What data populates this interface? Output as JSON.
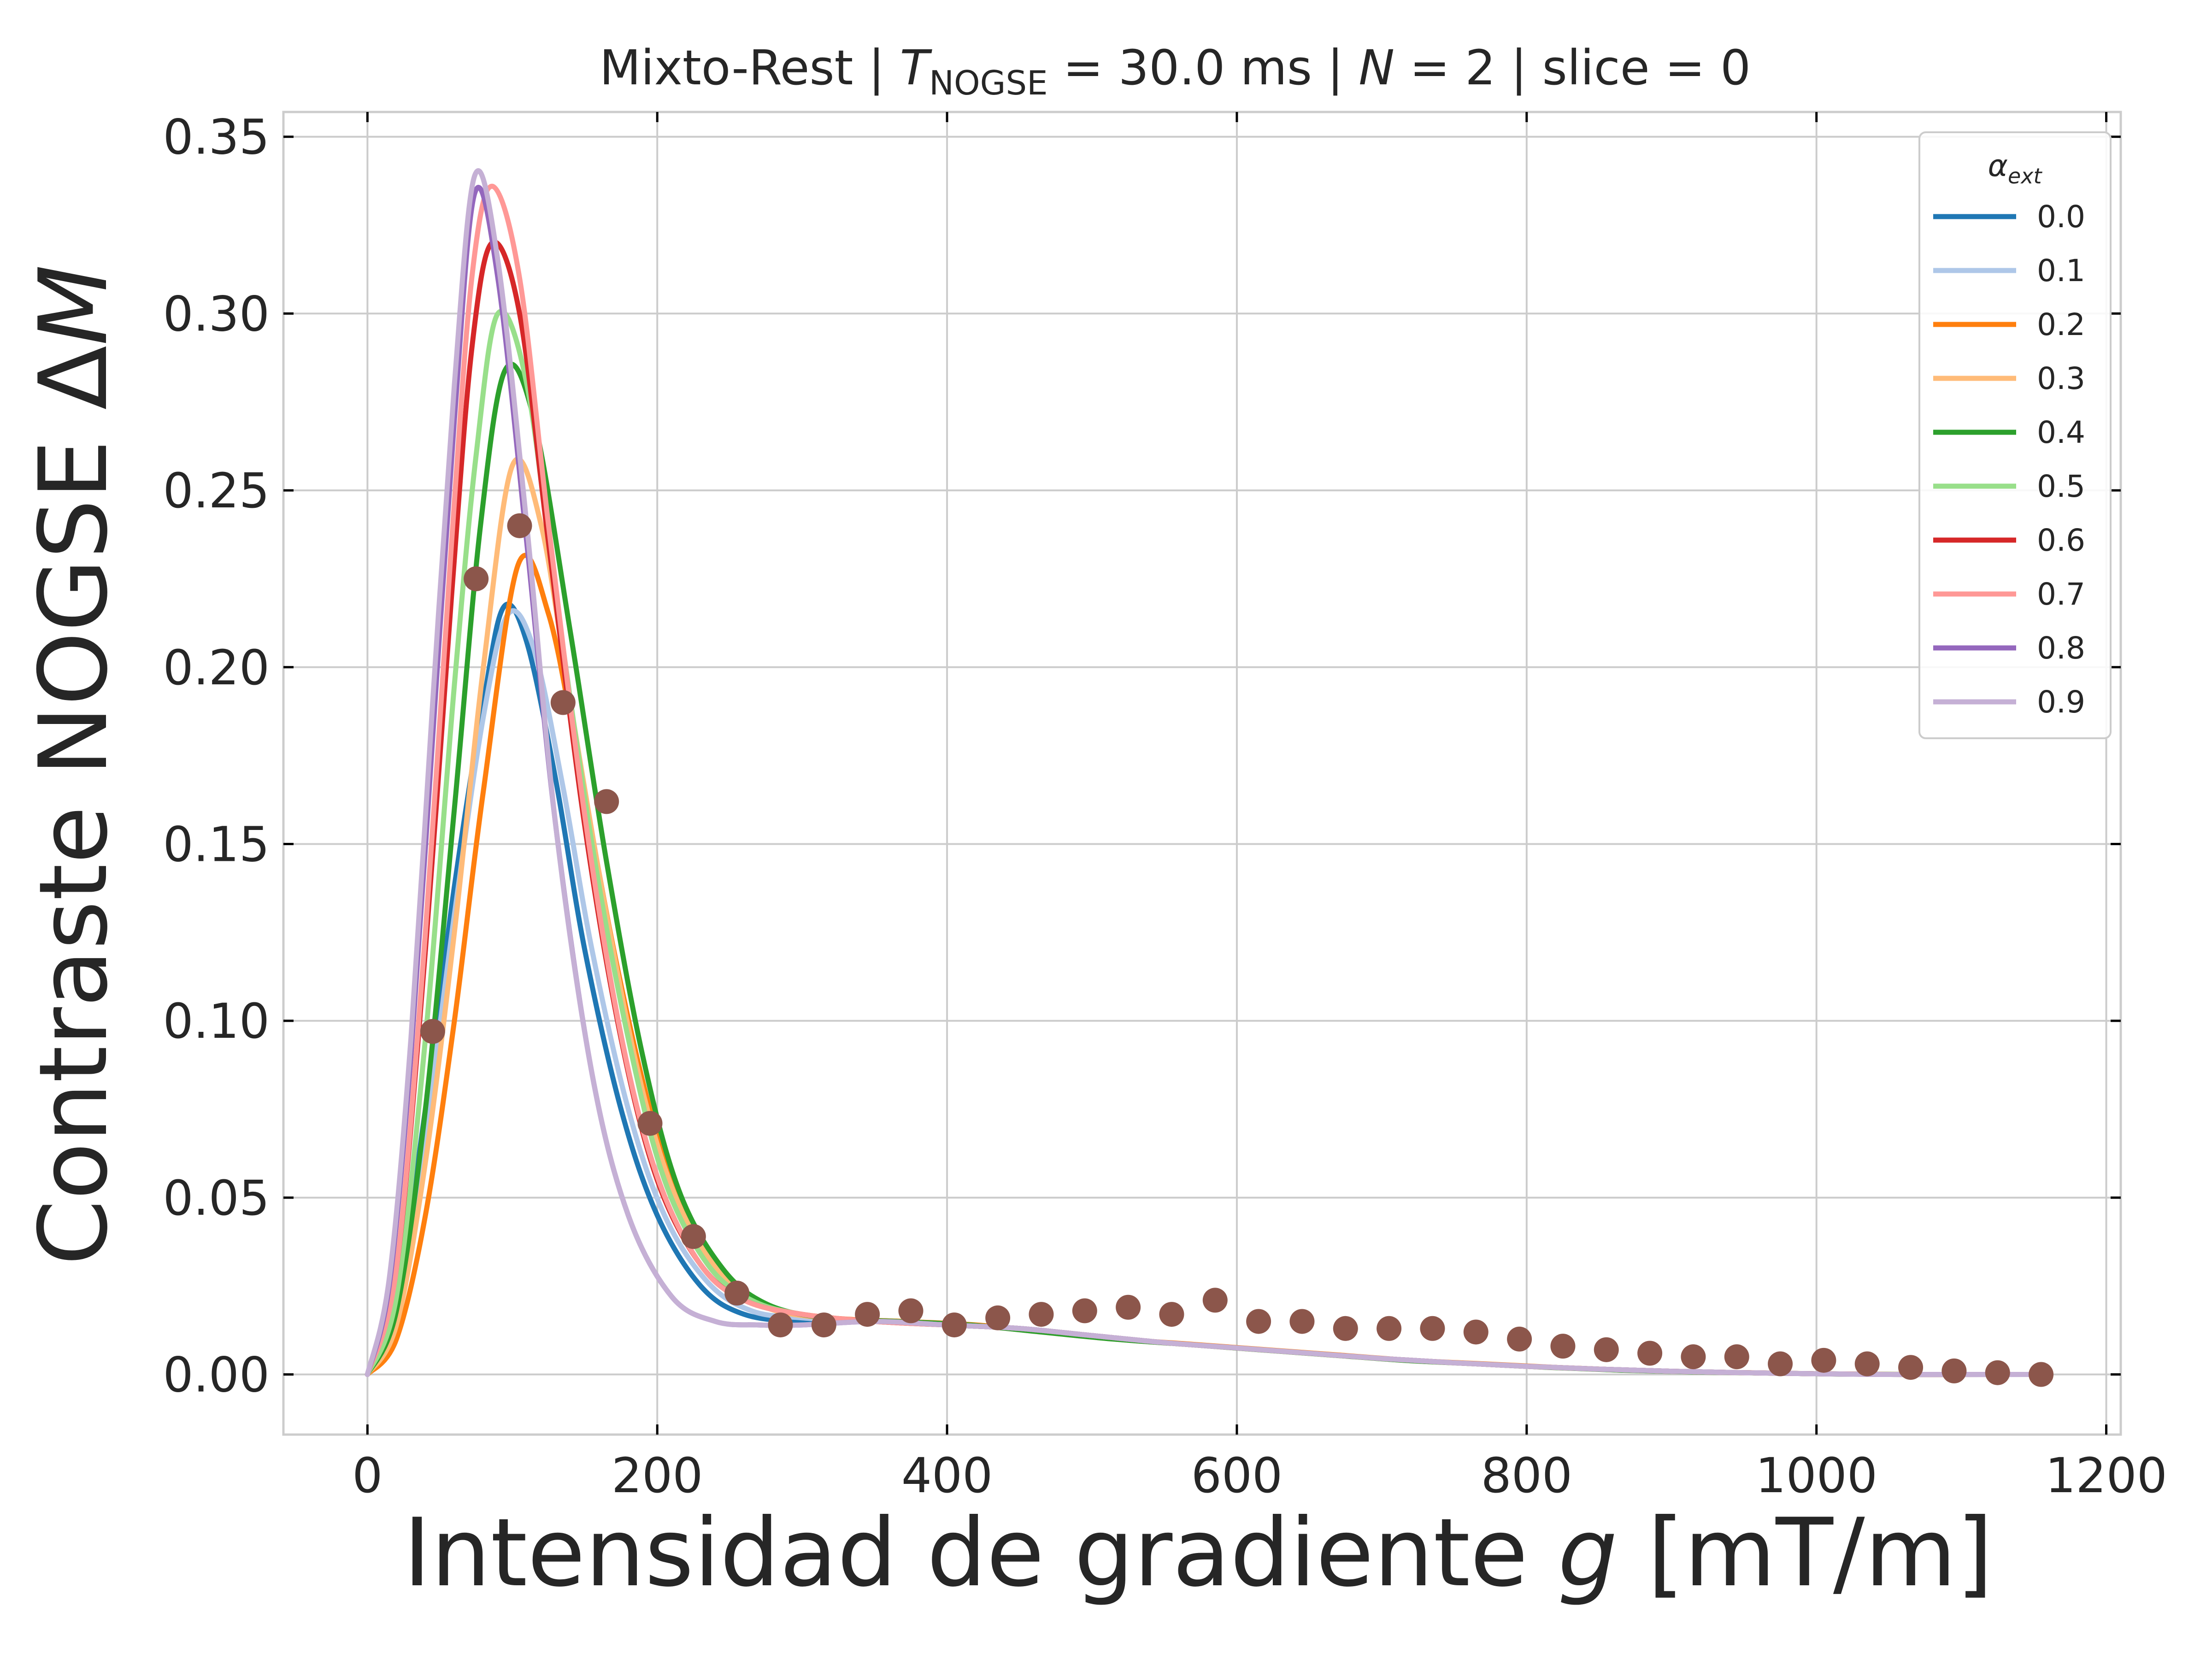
{
  "chart_data": {
    "type": "line",
    "title": {
      "prefix": "Mixto-Rest | ",
      "T_symbol": "T",
      "T_subscript": "NOGSE",
      "T_value": " = 30.0 ms | ",
      "N_symbol": "N",
      "N_value": " = 2 | slice = 0"
    },
    "xlabel": {
      "text": "Intensidad de gradiente ",
      "var": "g",
      "unit": " [mT/m]"
    },
    "ylabel": {
      "text": "Contraste NOGSE Δ",
      "var": "M"
    },
    "xlim": [
      -58,
      1210
    ],
    "ylim": [
      -0.017,
      0.357
    ],
    "xticks": [
      0,
      200,
      400,
      600,
      800,
      1000,
      1200
    ],
    "xtick_labels": [
      "0",
      "200",
      "400",
      "600",
      "800",
      "1000",
      "1200"
    ],
    "yticks": [
      0.0,
      0.05,
      0.1,
      0.15,
      0.2,
      0.25,
      0.3,
      0.35
    ],
    "ytick_labels": [
      "0.00",
      "0.05",
      "0.10",
      "0.15",
      "0.20",
      "0.25",
      "0.30",
      "0.35"
    ],
    "grid": true,
    "legend": {
      "title_symbol": "α",
      "title_subscript": "ext",
      "placement": "top-right"
    },
    "series": [
      {
        "name": "0.0",
        "color": "#1f77b4",
        "x": [
          0,
          20,
          40,
          60,
          80,
          94,
          110,
          130,
          150,
          175,
          200,
          230,
          260,
          300,
          350,
          400,
          450,
          500,
          550,
          600,
          650,
          700,
          750,
          800,
          850,
          900,
          950,
          1000,
          1050,
          1100,
          1152
        ],
        "y": [
          0.0,
          0.022,
          0.075,
          0.138,
          0.19,
          0.217,
          0.207,
          0.168,
          0.12,
          0.075,
          0.045,
          0.025,
          0.017,
          0.015,
          0.015,
          0.014,
          0.013,
          0.011,
          0.009,
          0.0075,
          0.006,
          0.0045,
          0.0033,
          0.0023,
          0.0015,
          0.0009,
          0.0005,
          0.0002,
          0.0,
          0.0,
          0.0
        ]
      },
      {
        "name": "0.1",
        "color": "#aec7e8",
        "x": [
          0,
          20,
          40,
          60,
          80,
          97,
          115,
          135,
          155,
          180,
          205,
          235,
          265,
          300,
          350,
          400,
          450,
          500,
          550,
          600,
          650,
          700,
          750,
          800,
          850,
          900,
          950,
          1000,
          1050,
          1100,
          1152
        ],
        "y": [
          0.0,
          0.019,
          0.068,
          0.13,
          0.186,
          0.215,
          0.205,
          0.166,
          0.12,
          0.075,
          0.045,
          0.026,
          0.018,
          0.016,
          0.015,
          0.014,
          0.013,
          0.011,
          0.009,
          0.0075,
          0.006,
          0.0045,
          0.0033,
          0.0023,
          0.0015,
          0.0009,
          0.0005,
          0.0002,
          0.0,
          0.0,
          0.0
        ]
      },
      {
        "name": "0.2",
        "color": "#ff7f0e",
        "x": [
          0,
          20,
          40,
          60,
          80,
          104,
          125,
          145,
          170,
          195,
          220,
          250,
          280,
          320,
          370,
          420,
          470,
          520,
          570,
          620,
          670,
          720,
          770,
          820,
          870,
          920,
          970,
          1020,
          1070,
          1120,
          1152
        ],
        "y": [
          0.0,
          0.01,
          0.045,
          0.1,
          0.165,
          0.229,
          0.215,
          0.175,
          0.12,
          0.075,
          0.045,
          0.027,
          0.019,
          0.016,
          0.015,
          0.014,
          0.012,
          0.01,
          0.0085,
          0.007,
          0.0055,
          0.004,
          0.003,
          0.002,
          0.0012,
          0.0007,
          0.0004,
          0.0001,
          0.0,
          0.0,
          0.0
        ]
      },
      {
        "name": "0.3",
        "color": "#ffbb78",
        "x": [
          0,
          20,
          40,
          60,
          80,
          100,
          120,
          140,
          165,
          190,
          215,
          245,
          275,
          315,
          365,
          415,
          465,
          515,
          565,
          615,
          665,
          715,
          765,
          815,
          865,
          915,
          965,
          1015,
          1065,
          1115,
          1152
        ],
        "y": [
          0.0,
          0.014,
          0.06,
          0.125,
          0.2,
          0.257,
          0.24,
          0.19,
          0.13,
          0.08,
          0.048,
          0.028,
          0.019,
          0.016,
          0.015,
          0.014,
          0.012,
          0.01,
          0.0085,
          0.007,
          0.0055,
          0.004,
          0.003,
          0.002,
          0.0012,
          0.0007,
          0.0004,
          0.0001,
          0.0,
          0.0,
          0.0
        ]
      },
      {
        "name": "0.4",
        "color": "#2ca02c",
        "x": [
          0,
          20,
          40,
          60,
          78,
          95,
          115,
          140,
          165,
          190,
          215,
          245,
          275,
          315,
          365,
          415,
          465,
          515,
          565,
          615,
          665,
          715,
          765,
          815,
          865,
          915,
          965,
          1015,
          1065,
          1115,
          1152
        ],
        "y": [
          0.0,
          0.018,
          0.075,
          0.16,
          0.24,
          0.284,
          0.27,
          0.21,
          0.145,
          0.09,
          0.052,
          0.03,
          0.02,
          0.016,
          0.015,
          0.014,
          0.012,
          0.01,
          0.0085,
          0.007,
          0.0055,
          0.004,
          0.003,
          0.002,
          0.0012,
          0.0007,
          0.0004,
          0.0001,
          0.0,
          0.0,
          0.0
        ]
      },
      {
        "name": "0.5",
        "color": "#98df8a",
        "x": [
          0,
          20,
          40,
          60,
          75,
          90,
          110,
          130,
          155,
          180,
          205,
          235,
          265,
          300,
          350,
          400,
          450,
          500,
          550,
          600,
          650,
          700,
          750,
          800,
          850,
          900,
          950,
          1000,
          1050,
          1100,
          1152
        ],
        "y": [
          0.0,
          0.022,
          0.095,
          0.195,
          0.26,
          0.3,
          0.28,
          0.22,
          0.15,
          0.095,
          0.055,
          0.031,
          0.021,
          0.017,
          0.015,
          0.014,
          0.013,
          0.011,
          0.009,
          0.0075,
          0.006,
          0.0045,
          0.0033,
          0.0023,
          0.0015,
          0.0009,
          0.0005,
          0.0002,
          0.0,
          0.0,
          0.0
        ]
      },
      {
        "name": "0.6",
        "color": "#d62728",
        "x": [
          0,
          20,
          40,
          58,
          72,
          86,
          105,
          125,
          150,
          175,
          200,
          230,
          260,
          300,
          350,
          400,
          450,
          500,
          550,
          600,
          650,
          700,
          750,
          800,
          850,
          900,
          950,
          1000,
          1050,
          1100,
          1152
        ],
        "y": [
          0.0,
          0.03,
          0.12,
          0.22,
          0.29,
          0.32,
          0.3,
          0.235,
          0.155,
          0.095,
          0.055,
          0.031,
          0.021,
          0.017,
          0.015,
          0.014,
          0.013,
          0.011,
          0.009,
          0.0075,
          0.006,
          0.0045,
          0.0033,
          0.0023,
          0.0015,
          0.0009,
          0.0005,
          0.0002,
          0.0,
          0.0,
          0.0
        ]
      },
      {
        "name": "0.7",
        "color": "#ff9896",
        "x": [
          0,
          20,
          40,
          58,
          72,
          86,
          105,
          125,
          150,
          175,
          200,
          230,
          260,
          300,
          350,
          400,
          450,
          500,
          550,
          600,
          650,
          700,
          750,
          800,
          850,
          900,
          950,
          1000,
          1050,
          1100,
          1152
        ],
        "y": [
          0.0,
          0.03,
          0.125,
          0.235,
          0.31,
          0.336,
          0.31,
          0.24,
          0.158,
          0.096,
          0.056,
          0.031,
          0.021,
          0.017,
          0.015,
          0.014,
          0.013,
          0.011,
          0.009,
          0.0075,
          0.006,
          0.0045,
          0.0033,
          0.0023,
          0.0015,
          0.0009,
          0.0005,
          0.0002,
          0.0,
          0.0,
          0.0
        ]
      },
      {
        "name": "0.8",
        "color": "#9467bd",
        "x": [
          0,
          15,
          30,
          45,
          60,
          74,
          90,
          110,
          130,
          155,
          180,
          210,
          240,
          270,
          300,
          350,
          400,
          450,
          500,
          550,
          600,
          650,
          700,
          750,
          800,
          850,
          900,
          950,
          1000,
          1050,
          1152
        ],
        "y": [
          0.0,
          0.025,
          0.09,
          0.18,
          0.27,
          0.334,
          0.31,
          0.235,
          0.155,
          0.085,
          0.045,
          0.022,
          0.015,
          0.014,
          0.014,
          0.015,
          0.014,
          0.013,
          0.011,
          0.009,
          0.0075,
          0.006,
          0.0045,
          0.0033,
          0.0023,
          0.0015,
          0.0009,
          0.0005,
          0.0002,
          0.0,
          0.0
        ]
      },
      {
        "name": "0.9",
        "color": "#c5b0d5",
        "x": [
          0,
          15,
          30,
          45,
          60,
          74,
          90,
          110,
          130,
          155,
          180,
          210,
          240,
          270,
          300,
          350,
          400,
          450,
          500,
          550,
          600,
          650,
          700,
          750,
          800,
          850,
          900,
          950,
          1000,
          1050,
          1152
        ],
        "y": [
          0.0,
          0.027,
          0.095,
          0.19,
          0.28,
          0.339,
          0.315,
          0.24,
          0.155,
          0.085,
          0.045,
          0.022,
          0.015,
          0.014,
          0.014,
          0.015,
          0.014,
          0.013,
          0.011,
          0.009,
          0.0075,
          0.006,
          0.0045,
          0.0033,
          0.0023,
          0.0015,
          0.0009,
          0.0005,
          0.0002,
          0.0,
          0.0
        ]
      }
    ],
    "scatter": {
      "color": "#8c564b",
      "x": [
        45,
        75,
        105,
        135,
        165,
        195,
        225,
        255,
        285,
        315,
        345,
        375,
        405,
        435,
        465,
        495,
        525,
        555,
        585,
        615,
        645,
        675,
        705,
        735,
        765,
        795,
        825,
        855,
        885,
        915,
        945,
        975,
        1005,
        1035,
        1065,
        1095,
        1125,
        1155
      ],
      "y": [
        0.097,
        0.225,
        0.24,
        0.19,
        0.162,
        0.071,
        0.039,
        0.023,
        0.014,
        0.014,
        0.017,
        0.018,
        0.014,
        0.016,
        0.017,
        0.018,
        0.019,
        0.017,
        0.021,
        0.015,
        0.015,
        0.013,
        0.013,
        0.013,
        0.012,
        0.01,
        0.008,
        0.007,
        0.006,
        0.005,
        0.005,
        0.003,
        0.004,
        0.003,
        0.002,
        0.001,
        0.0005,
        0.0
      ]
    }
  }
}
